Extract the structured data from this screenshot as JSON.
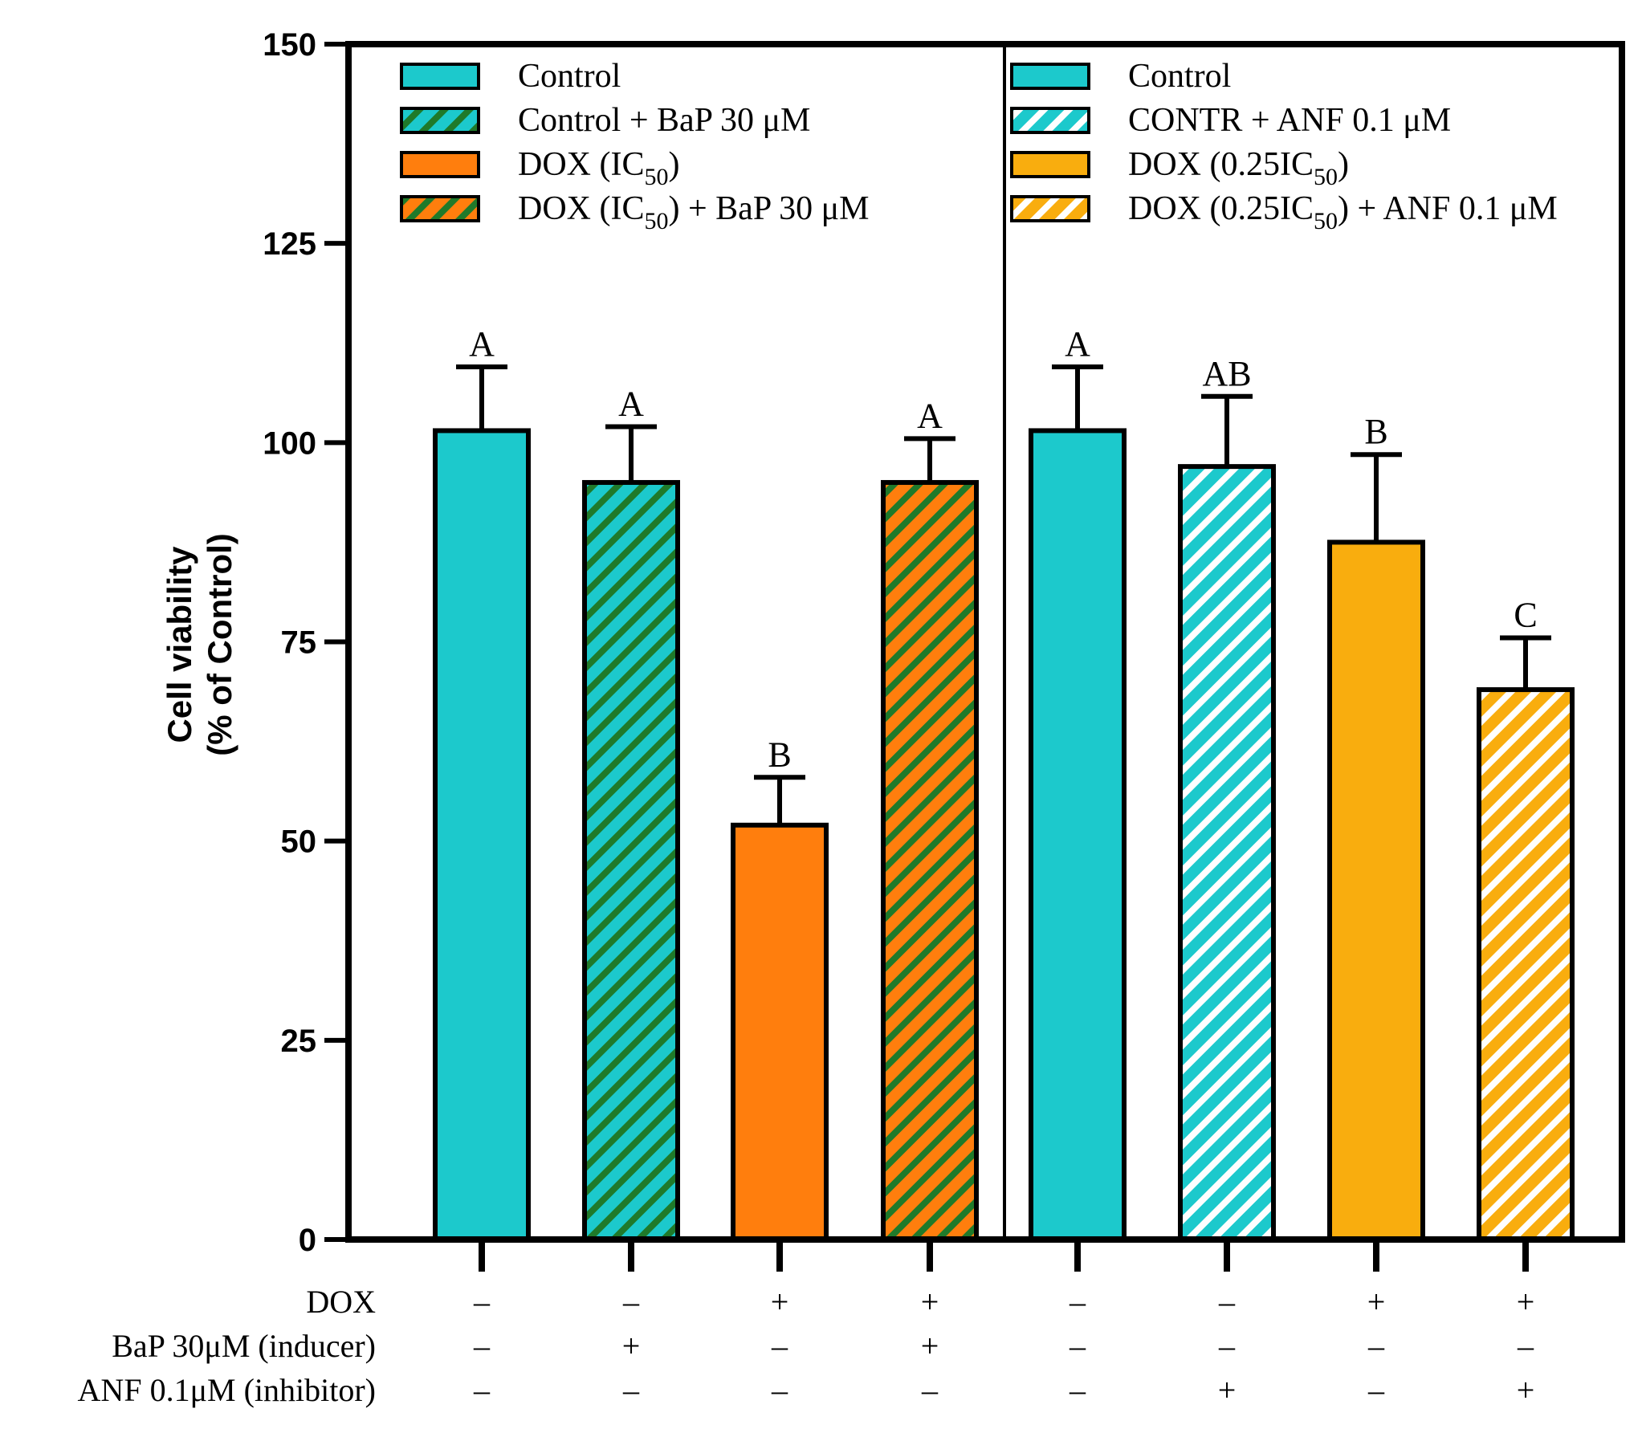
{
  "chart_data": {
    "type": "bar",
    "ylabel_line1": "Cell viability",
    "ylabel_line2": "(% of Control)",
    "ylim": [
      0,
      150
    ],
    "yticks": [
      0,
      25,
      50,
      75,
      100,
      125,
      150
    ],
    "panels": [
      {
        "legend": [
          {
            "text": "Control",
            "sub": "",
            "tail": "",
            "color": "#1cc9cc",
            "stripe": "",
            "pattern": "solid"
          },
          {
            "text": "Control + BaP 30 μM",
            "sub": "",
            "tail": "",
            "color": "#1cc9cc",
            "stripe": "#1f7a2a",
            "pattern": "hatch"
          },
          {
            "text": "DOX (IC",
            "sub": "50",
            "tail": ")",
            "color": "#ff7e0d",
            "stripe": "",
            "pattern": "solid"
          },
          {
            "text": "DOX (IC",
            "sub": "50",
            "tail": ") + BaP 30 μM",
            "color": "#ff7e0d",
            "stripe": "#1f7a2a",
            "pattern": "hatch"
          }
        ],
        "bars": [
          {
            "value": 101.5,
            "error": 8.0,
            "letter": "A",
            "color": "#1cc9cc",
            "stripe": "",
            "pattern": "solid"
          },
          {
            "value": 95.0,
            "error": 7.0,
            "letter": "A",
            "color": "#1cc9cc",
            "stripe": "#1f7a2a",
            "pattern": "hatch"
          },
          {
            "value": 52.0,
            "error": 6.0,
            "letter": "B",
            "color": "#ff7e0d",
            "stripe": "",
            "pattern": "solid"
          },
          {
            "value": 95.0,
            "error": 5.5,
            "letter": "A",
            "color": "#ff7e0d",
            "stripe": "#1f7a2a",
            "pattern": "hatch"
          }
        ]
      },
      {
        "legend": [
          {
            "text": "Control",
            "sub": "",
            "tail": "",
            "color": "#1cc9cc",
            "stripe": "",
            "pattern": "solid"
          },
          {
            "text": "CONTR + ANF 0.1 μM",
            "sub": "",
            "tail": "",
            "color": "#1cc9cc",
            "stripe": "#ffffff",
            "pattern": "hatch"
          },
          {
            "text": "DOX (0.25IC",
            "sub": "50",
            "tail": ")",
            "color": "#f9ad0e",
            "stripe": "",
            "pattern": "solid"
          },
          {
            "text": "DOX (0.25IC",
            "sub": "50",
            "tail": ") + ANF 0.1 μM",
            "color": "#f9ad0e",
            "stripe": "#ffffff",
            "pattern": "hatch"
          }
        ],
        "bars": [
          {
            "value": 101.5,
            "error": 8.0,
            "letter": "A",
            "color": "#1cc9cc",
            "stripe": "",
            "pattern": "solid"
          },
          {
            "value": 97.0,
            "error": 8.8,
            "letter": "AB",
            "color": "#1cc9cc",
            "stripe": "#ffffff",
            "pattern": "hatch"
          },
          {
            "value": 87.5,
            "error": 11.0,
            "letter": "B",
            "color": "#f9ad0e",
            "stripe": "",
            "pattern": "solid"
          },
          {
            "value": 69.0,
            "error": 6.5,
            "letter": "C",
            "color": "#f9ad0e",
            "stripe": "#ffffff",
            "pattern": "hatch"
          }
        ]
      }
    ],
    "treatment_table": [
      {
        "label": "DOX",
        "signs": [
          "–",
          "–",
          "+",
          "+",
          "–",
          "–",
          "+",
          "+"
        ]
      },
      {
        "label": "BaP 30μM (inducer)",
        "signs": [
          "–",
          "+",
          "–",
          "+",
          "–",
          "–",
          "–",
          "–"
        ]
      },
      {
        "label": "ANF 0.1μM (inhibitor)",
        "signs": [
          "–",
          "–",
          "–",
          "–",
          "–",
          "+",
          "–",
          "+"
        ]
      }
    ]
  }
}
